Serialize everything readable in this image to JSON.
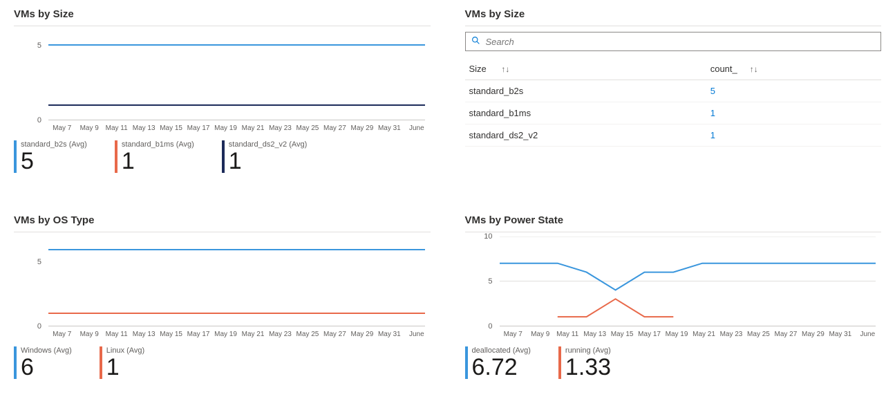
{
  "colors": {
    "blue": "#3a96dd",
    "orange": "#e8694a",
    "navy": "#1c2b5a",
    "text": "#323130",
    "link": "#0078d4"
  },
  "x_ticks": [
    "May 7",
    "May 9",
    "May 11",
    "May 13",
    "May 15",
    "May 17",
    "May 19",
    "May 21",
    "May 23",
    "May 25",
    "May 27",
    "May 29",
    "May 31",
    "June"
  ],
  "panels": {
    "size_chart": {
      "title": "VMs by Size",
      "type": "line",
      "ylim": [
        0,
        6
      ],
      "y_ticks": [
        {
          "value": 0,
          "label": "0"
        },
        {
          "value": 5,
          "label": "5"
        }
      ],
      "series": [
        {
          "name": "standard_b2s",
          "color": "#3a96dd",
          "const_value": 5
        },
        {
          "name": "standard_b1ms",
          "color": "#e8694a",
          "const_value": 1
        },
        {
          "name": "standard_ds2_v2",
          "color": "#1c2b5a",
          "const_value": 1
        }
      ],
      "metrics": [
        {
          "label": "standard_b2s (Avg)",
          "value": "5",
          "color": "#3a96dd"
        },
        {
          "label": "standard_b1ms (Avg)",
          "value": "1",
          "color": "#e8694a"
        },
        {
          "label": "standard_ds2_v2 (Avg)",
          "value": "1",
          "color": "#1c2b5a"
        }
      ]
    },
    "size_table": {
      "title": "VMs by Size",
      "search_placeholder": "Search",
      "columns": [
        {
          "label": "Size",
          "sortable": true
        },
        {
          "label": "count_",
          "sortable": true
        }
      ],
      "rows": [
        {
          "size": "standard_b2s",
          "count": "5"
        },
        {
          "size": "standard_b1ms",
          "count": "1"
        },
        {
          "size": "standard_ds2_v2",
          "count": "1"
        }
      ]
    },
    "os_chart": {
      "title": "VMs by OS Type",
      "type": "line",
      "ylim": [
        0,
        7
      ],
      "y_ticks": [
        {
          "value": 0,
          "label": "0"
        },
        {
          "value": 5,
          "label": "5"
        }
      ],
      "series": [
        {
          "name": "Windows",
          "color": "#3a96dd",
          "const_value": 6
        },
        {
          "name": "Linux",
          "color": "#e8694a",
          "const_value": 1
        }
      ],
      "metrics": [
        {
          "label": "Windows (Avg)",
          "value": "6",
          "color": "#3a96dd"
        },
        {
          "label": "Linux (Avg)",
          "value": "1",
          "color": "#e8694a"
        }
      ]
    },
    "power_chart": {
      "title": "VMs by Power State",
      "type": "line",
      "ylim": [
        0,
        10
      ],
      "y_ticks": [
        {
          "value": 0,
          "label": "0"
        },
        {
          "value": 5,
          "label": "5"
        },
        {
          "value": 10,
          "label": "10"
        }
      ],
      "series": [
        {
          "name": "deallocated",
          "color": "#3a96dd",
          "points": [
            [
              0,
              7
            ],
            [
              1,
              7
            ],
            [
              2,
              7
            ],
            [
              3,
              6
            ],
            [
              4,
              4
            ],
            [
              5,
              6
            ],
            [
              6,
              6
            ],
            [
              7,
              7
            ],
            [
              8,
              7
            ],
            [
              9,
              7
            ],
            [
              10,
              7
            ],
            [
              11,
              7
            ],
            [
              12,
              7
            ],
            [
              13,
              7
            ]
          ]
        },
        {
          "name": "running",
          "color": "#e8694a",
          "points": [
            [
              2,
              1
            ],
            [
              3,
              1
            ],
            [
              4,
              3
            ],
            [
              5,
              1
            ],
            [
              6,
              1
            ]
          ]
        }
      ],
      "metrics": [
        {
          "label": "deallocated (Avg)",
          "value": "6.72",
          "color": "#3a96dd"
        },
        {
          "label": "running (Avg)",
          "value": "1.33",
          "color": "#e8694a"
        }
      ]
    }
  }
}
